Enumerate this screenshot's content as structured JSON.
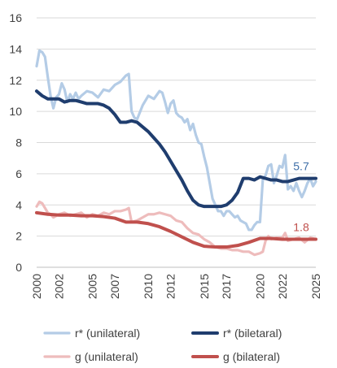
{
  "chart_data": {
    "type": "line",
    "title": "",
    "xlabel": "",
    "ylabel": "",
    "ylim": [
      0,
      16
    ],
    "xlim": [
      2000,
      2025
    ],
    "y_ticks": [
      0,
      2,
      4,
      6,
      8,
      10,
      12,
      14,
      16
    ],
    "x_ticks": [
      2000,
      2002,
      2005,
      2007,
      2010,
      2012,
      2015,
      2017,
      2020,
      2022,
      2025
    ],
    "x_tick_labels": [
      "2000",
      "2002",
      "2005",
      "2007",
      "2010",
      "2012",
      "2015",
      "2017",
      "2020",
      "2022",
      "2025"
    ],
    "grid": "horizontal",
    "legend_position": "bottom",
    "series": [
      {
        "name": "r* (unilateral)",
        "color": "#b4cce6",
        "x": [
          2000.0,
          2000.25,
          2000.5,
          2000.75,
          2001.0,
          2001.25,
          2001.5,
          2001.75,
          2002.0,
          2002.25,
          2002.5,
          2002.75,
          2003.0,
          2003.25,
          2003.5,
          2003.75,
          2004.0,
          2004.5,
          2005.0,
          2005.5,
          2006.0,
          2006.5,
          2007.0,
          2007.5,
          2008.0,
          2008.25,
          2008.5,
          2008.75,
          2009.0,
          2009.5,
          2010.0,
          2010.5,
          2011.0,
          2011.25,
          2011.5,
          2011.75,
          2012.0,
          2012.25,
          2012.5,
          2012.75,
          2013.0,
          2013.25,
          2013.5,
          2013.75,
          2014.0,
          2014.25,
          2014.5,
          2014.75,
          2015.0,
          2015.25,
          2015.5,
          2015.75,
          2016.0,
          2016.25,
          2016.5,
          2016.75,
          2017.0,
          2017.25,
          2017.5,
          2017.75,
          2018.0,
          2018.25,
          2018.5,
          2018.75,
          2019.0,
          2019.25,
          2019.5,
          2019.75,
          2020.0,
          2020.25,
          2020.5,
          2020.75,
          2021.0,
          2021.25,
          2021.5,
          2021.75,
          2022.0,
          2022.25,
          2022.5,
          2022.75,
          2023.0,
          2023.25,
          2023.5,
          2023.75,
          2024.0,
          2024.25,
          2024.5,
          2024.75,
          2025.0
        ],
        "values": [
          12.9,
          13.9,
          13.8,
          13.5,
          12.2,
          11.0,
          10.2,
          10.9,
          11.1,
          11.8,
          11.4,
          10.6,
          11.1,
          10.8,
          11.2,
          10.8,
          11.0,
          11.3,
          11.2,
          10.9,
          11.4,
          11.3,
          11.7,
          11.9,
          12.3,
          12.4,
          10.0,
          9.6,
          9.5,
          10.4,
          11.0,
          10.8,
          11.3,
          11.2,
          10.6,
          9.9,
          10.5,
          10.7,
          9.9,
          9.7,
          9.6,
          9.3,
          9.5,
          8.8,
          9.2,
          8.5,
          8.0,
          7.9,
          7.1,
          6.4,
          5.4,
          4.4,
          4.0,
          3.6,
          3.6,
          3.3,
          3.6,
          3.6,
          3.4,
          3.2,
          3.3,
          3.0,
          2.9,
          2.8,
          2.4,
          2.4,
          2.7,
          2.9,
          2.9,
          5.6,
          5.9,
          6.5,
          6.6,
          5.4,
          5.9,
          6.5,
          6.4,
          7.2,
          5.0,
          5.2,
          4.9,
          5.4,
          4.9,
          4.5,
          4.9,
          5.4,
          5.7,
          5.2,
          5.5
        ]
      },
      {
        "name": "r* (biletaral)",
        "color": "#1f3d6e",
        "x": [
          2000.0,
          2000.5,
          2001.0,
          2001.5,
          2002.0,
          2002.5,
          2003.0,
          2003.5,
          2004.0,
          2004.5,
          2005.0,
          2005.5,
          2006.0,
          2006.5,
          2007.0,
          2007.5,
          2008.0,
          2008.5,
          2009.0,
          2009.5,
          2010.0,
          2010.5,
          2011.0,
          2011.5,
          2012.0,
          2012.5,
          2013.0,
          2013.5,
          2014.0,
          2014.5,
          2015.0,
          2015.5,
          2016.0,
          2016.5,
          2017.0,
          2017.5,
          2018.0,
          2018.5,
          2019.0,
          2019.5,
          2020.0,
          2020.5,
          2021.0,
          2021.5,
          2022.0,
          2022.5,
          2023.0,
          2023.5,
          2024.0,
          2024.5,
          2025.0
        ],
        "values": [
          11.3,
          11.0,
          10.8,
          10.8,
          10.8,
          10.6,
          10.7,
          10.7,
          10.6,
          10.5,
          10.5,
          10.5,
          10.4,
          10.2,
          9.8,
          9.3,
          9.3,
          9.4,
          9.3,
          9.0,
          8.7,
          8.3,
          7.9,
          7.4,
          6.8,
          6.2,
          5.6,
          4.9,
          4.3,
          4.0,
          3.9,
          3.9,
          3.9,
          3.9,
          4.0,
          4.3,
          4.8,
          5.7,
          5.7,
          5.6,
          5.8,
          5.7,
          5.6,
          5.6,
          5.5,
          5.5,
          5.6,
          5.7,
          5.7,
          5.7,
          5.7
        ]
      },
      {
        "name": "g (unilateral)",
        "color": "#eebcbc",
        "x": [
          2000.0,
          2000.25,
          2000.5,
          2000.75,
          2001.0,
          2001.25,
          2001.5,
          2001.75,
          2002.0,
          2002.5,
          2003.0,
          2003.5,
          2004.0,
          2004.5,
          2005.0,
          2005.5,
          2006.0,
          2006.5,
          2007.0,
          2007.5,
          2008.0,
          2008.25,
          2008.5,
          2009.0,
          2009.5,
          2010.0,
          2010.5,
          2011.0,
          2011.5,
          2012.0,
          2012.5,
          2013.0,
          2013.5,
          2014.0,
          2014.5,
          2015.0,
          2015.5,
          2016.0,
          2016.5,
          2017.0,
          2017.5,
          2018.0,
          2018.5,
          2019.0,
          2019.5,
          2020.0,
          2020.25,
          2020.5,
          2020.75,
          2021.0,
          2021.5,
          2022.0,
          2022.25,
          2022.5,
          2023.0,
          2023.5,
          2024.0,
          2024.5,
          2025.0
        ],
        "values": [
          3.9,
          4.2,
          4.1,
          3.8,
          3.5,
          3.4,
          3.2,
          3.3,
          3.4,
          3.5,
          3.3,
          3.4,
          3.5,
          3.2,
          3.4,
          3.3,
          3.5,
          3.4,
          3.6,
          3.6,
          3.7,
          3.8,
          2.9,
          3.0,
          3.2,
          3.4,
          3.4,
          3.5,
          3.4,
          3.3,
          3.0,
          2.9,
          2.5,
          2.2,
          2.1,
          1.8,
          1.6,
          1.3,
          1.2,
          1.2,
          1.1,
          1.1,
          1.0,
          1.0,
          0.8,
          0.9,
          1.0,
          1.7,
          2.0,
          1.8,
          1.9,
          1.9,
          2.2,
          1.7,
          1.8,
          1.9,
          1.6,
          1.9,
          1.8
        ]
      },
      {
        "name": "g (bilateral)",
        "color": "#c0504d",
        "x": [
          2000.0,
          2001.0,
          2002.0,
          2003.0,
          2004.0,
          2005.0,
          2006.0,
          2007.0,
          2008.0,
          2009.0,
          2010.0,
          2011.0,
          2012.0,
          2013.0,
          2014.0,
          2015.0,
          2016.0,
          2017.0,
          2018.0,
          2019.0,
          2020.0,
          2021.0,
          2022.0,
          2023.0,
          2024.0,
          2025.0
        ],
        "values": [
          3.5,
          3.4,
          3.35,
          3.35,
          3.3,
          3.3,
          3.25,
          3.15,
          2.9,
          2.9,
          2.8,
          2.6,
          2.3,
          1.95,
          1.6,
          1.35,
          1.3,
          1.3,
          1.4,
          1.6,
          1.85,
          1.85,
          1.8,
          1.8,
          1.8,
          1.8
        ]
      }
    ],
    "data_labels": [
      {
        "text": "5.7",
        "series": "r* (biletaral)",
        "x": 2025.0,
        "y": 5.7,
        "color": "#3f6fa8"
      },
      {
        "text": "1.8",
        "series": "g (bilateral)",
        "x": 2025.0,
        "y": 1.8,
        "color": "#c0504d"
      }
    ],
    "colors": {
      "grid": "#d9d9d9",
      "axis": "#bfbfbf",
      "text": "#404040"
    }
  }
}
